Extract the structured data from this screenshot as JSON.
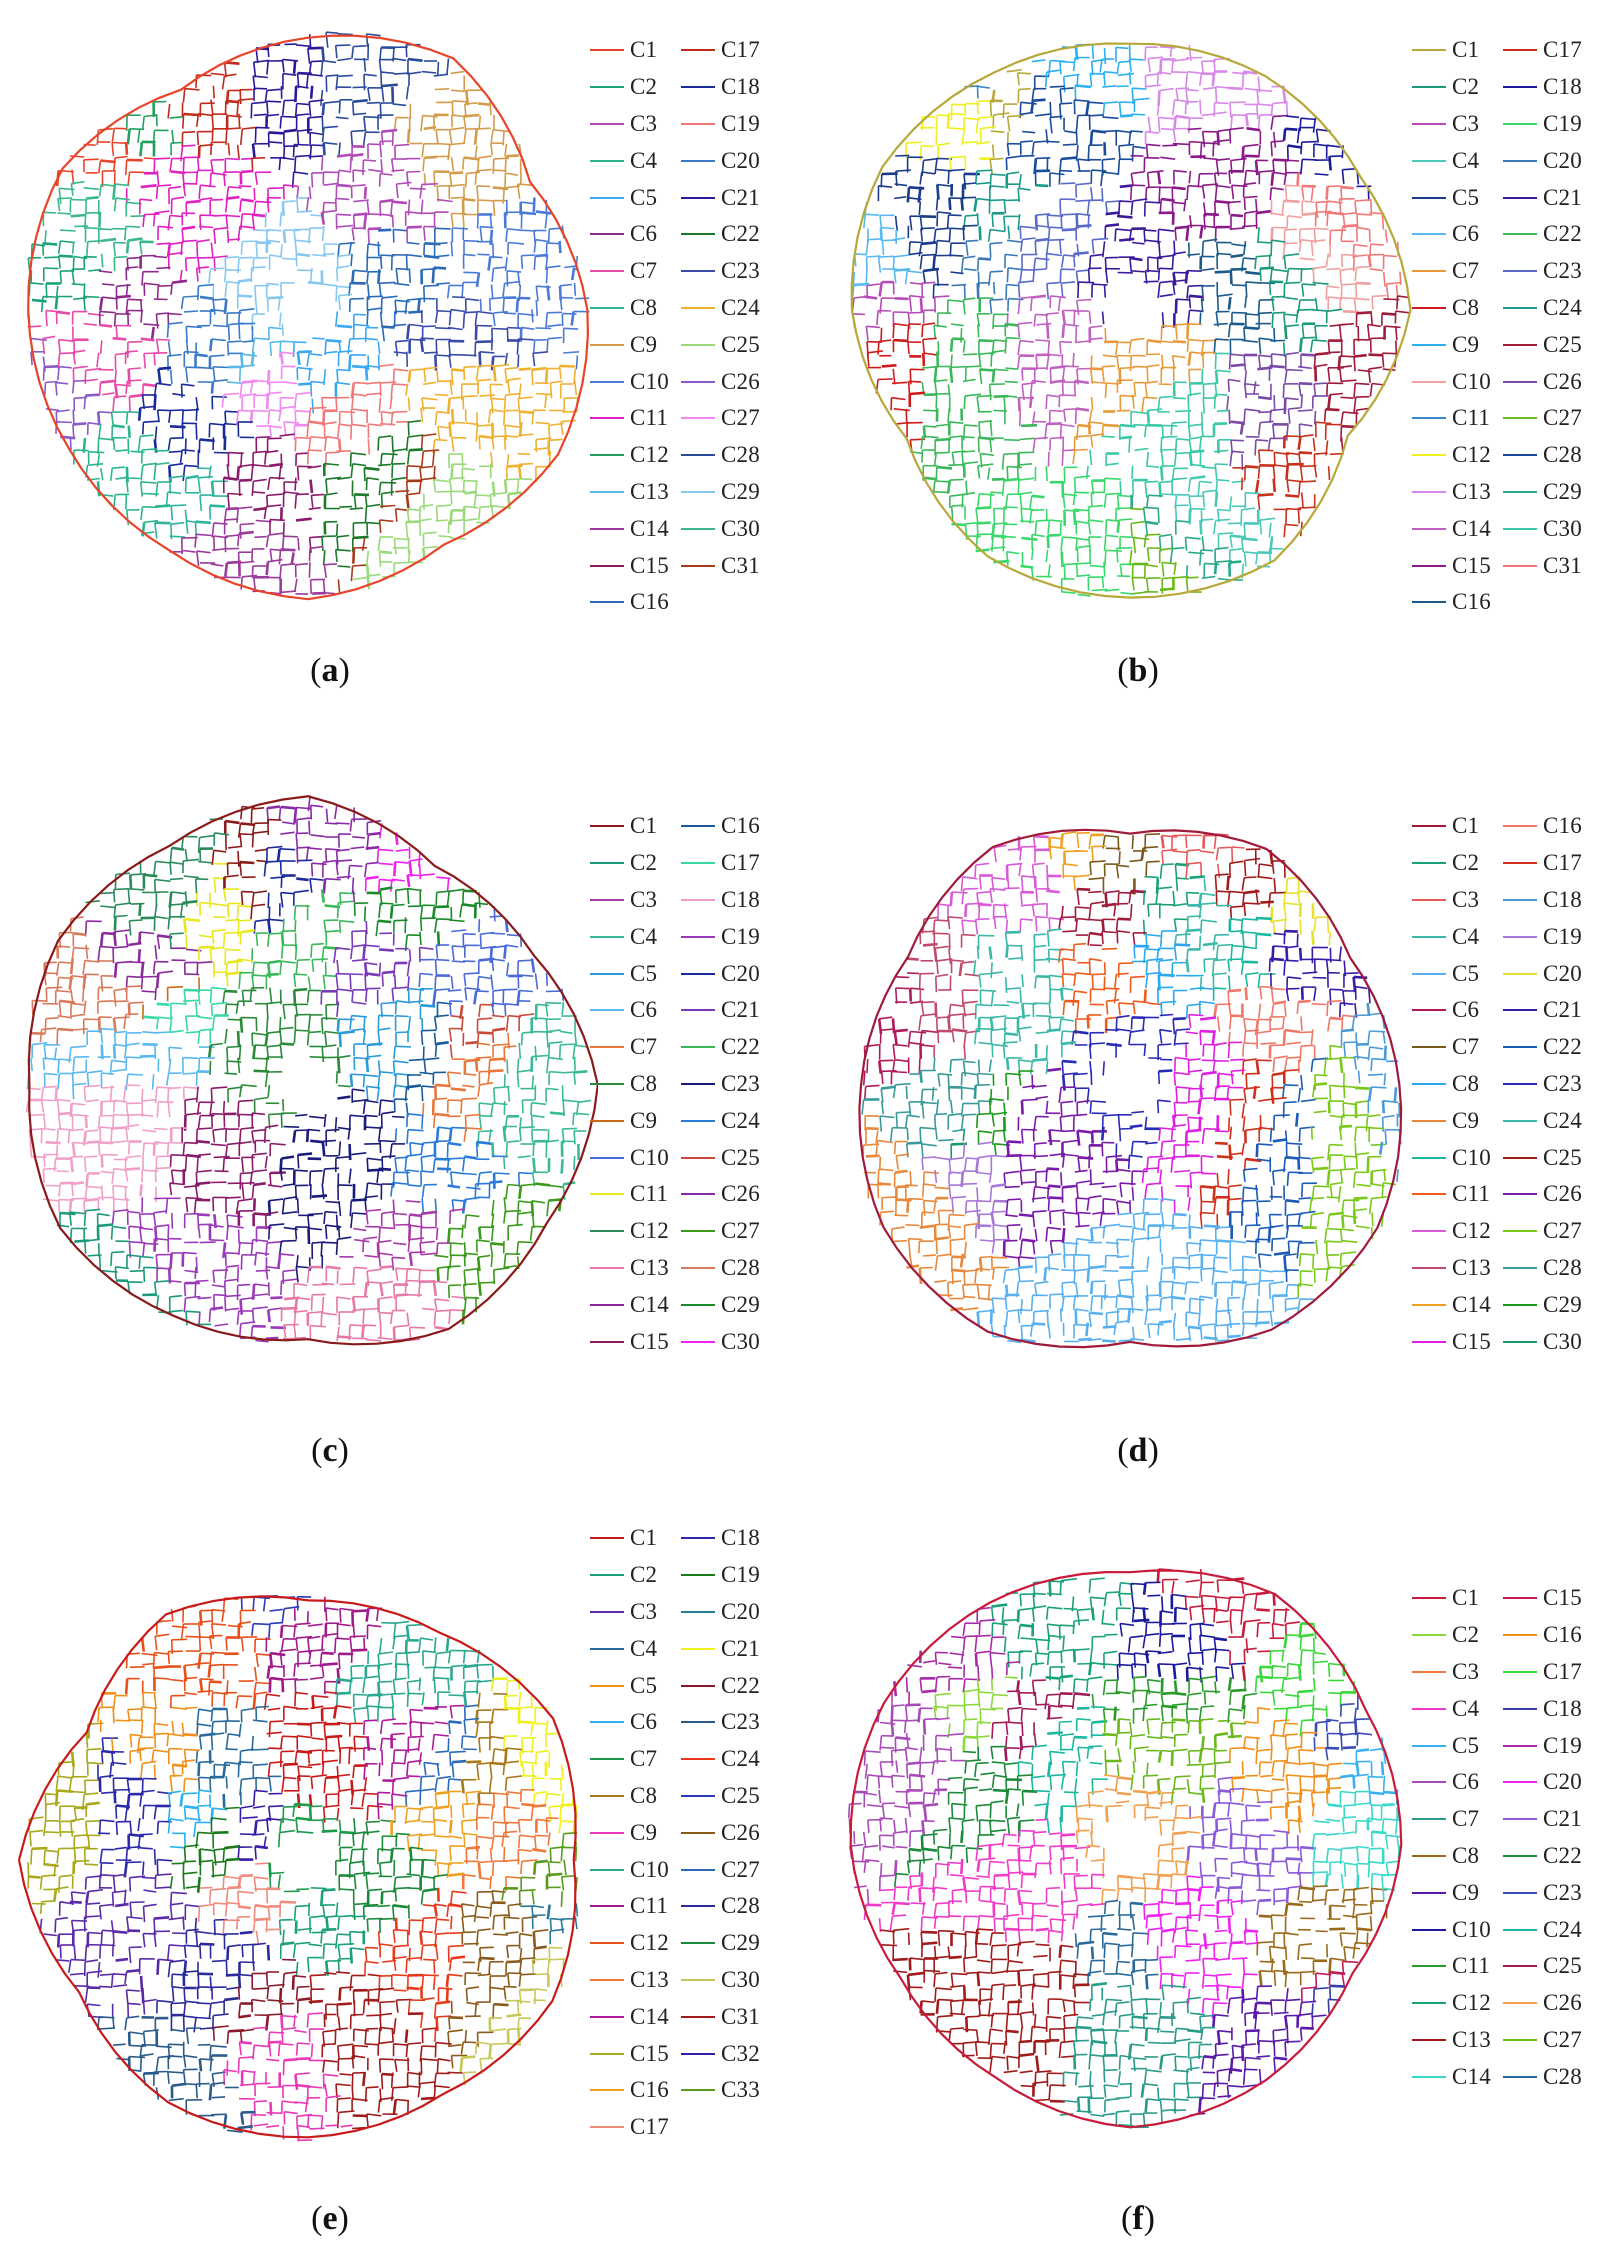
{
  "figure": {
    "panels": [
      {
        "id": "a",
        "label_open": "(",
        "letter": "a",
        "label_close": ")",
        "rows": 16,
        "legend": [
          {
            "name": "C1",
            "color": "#e8442a"
          },
          {
            "name": "C2",
            "color": "#1aa37a"
          },
          {
            "name": "C3",
            "color": "#b04ab8"
          },
          {
            "name": "C4",
            "color": "#2bb58f"
          },
          {
            "name": "C5",
            "color": "#3aa8f0"
          },
          {
            "name": "C6",
            "color": "#8c2a8c"
          },
          {
            "name": "C7",
            "color": "#e84aa8"
          },
          {
            "name": "C8",
            "color": "#2fb39e"
          },
          {
            "name": "C9",
            "color": "#d39b4a"
          },
          {
            "name": "C10",
            "color": "#4a7ad8"
          },
          {
            "name": "C11",
            "color": "#e020c0"
          },
          {
            "name": "C12",
            "color": "#22a060"
          },
          {
            "name": "C13",
            "color": "#58b8e8"
          },
          {
            "name": "C14",
            "color": "#9a3a9a"
          },
          {
            "name": "C15",
            "color": "#8a1a6a"
          },
          {
            "name": "C16",
            "color": "#2a6ab8"
          },
          {
            "name": "C17",
            "color": "#c02a1a"
          },
          {
            "name": "C18",
            "color": "#1a2a9a"
          },
          {
            "name": "C19",
            "color": "#f07878"
          },
          {
            "name": "C20",
            "color": "#3a7ac8"
          },
          {
            "name": "C21",
            "color": "#2a1a9a"
          },
          {
            "name": "C22",
            "color": "#1a7a2a"
          },
          {
            "name": "C23",
            "color": "#3a4aa8"
          },
          {
            "name": "C24",
            "color": "#f0b030"
          },
          {
            "name": "C25",
            "color": "#9ad87a"
          },
          {
            "name": "C26",
            "color": "#8a5ac8"
          },
          {
            "name": "C27",
            "color": "#f088f0"
          },
          {
            "name": "C28",
            "color": "#2a4a9a"
          },
          {
            "name": "C29",
            "color": "#88c8f0"
          },
          {
            "name": "C30",
            "color": "#3ab88a"
          },
          {
            "name": "C31",
            "color": "#a83a1a"
          }
        ]
      },
      {
        "id": "b",
        "label_open": "(",
        "letter": "b",
        "label_close": ")",
        "rows": 16,
        "legend": [
          {
            "name": "C1",
            "color": "#b8a83a"
          },
          {
            "name": "C2",
            "color": "#1a9a7a"
          },
          {
            "name": "C3",
            "color": "#b84ab8"
          },
          {
            "name": "C4",
            "color": "#4ac8b8"
          },
          {
            "name": "C5",
            "color": "#1a3a8a"
          },
          {
            "name": "C6",
            "color": "#58b8f0"
          },
          {
            "name": "C7",
            "color": "#e89a3a"
          },
          {
            "name": "C8",
            "color": "#d01a1a"
          },
          {
            "name": "C9",
            "color": "#2ab0f0"
          },
          {
            "name": "C10",
            "color": "#f0a0a0"
          },
          {
            "name": "C11",
            "color": "#3a88c8"
          },
          {
            "name": "C12",
            "color": "#f0f020"
          },
          {
            "name": "C13",
            "color": "#d888e8"
          },
          {
            "name": "C14",
            "color": "#c060c0"
          },
          {
            "name": "C15",
            "color": "#8a1a8a"
          },
          {
            "name": "C16",
            "color": "#1a5a8a"
          },
          {
            "name": "C17",
            "color": "#c8301a"
          },
          {
            "name": "C18",
            "color": "#1a1a9a"
          },
          {
            "name": "C19",
            "color": "#3ad86a"
          },
          {
            "name": "C20",
            "color": "#3a7ab8"
          },
          {
            "name": "C21",
            "color": "#3a1a9a"
          },
          {
            "name": "C22",
            "color": "#3ab85a"
          },
          {
            "name": "C23",
            "color": "#5a6ac8"
          },
          {
            "name": "C24",
            "color": "#1a9a8a"
          },
          {
            "name": "C25",
            "color": "#a01a3a"
          },
          {
            "name": "C26",
            "color": "#7a4aa8"
          },
          {
            "name": "C27",
            "color": "#6ab81a"
          },
          {
            "name": "C28",
            "color": "#1a4a9a"
          },
          {
            "name": "C29",
            "color": "#2aa88a"
          },
          {
            "name": "C30",
            "color": "#3ac8a8"
          },
          {
            "name": "C31",
            "color": "#f07878"
          }
        ]
      },
      {
        "id": "c",
        "label_open": "(",
        "letter": "c",
        "label_close": ")",
        "rows": 15,
        "legend": [
          {
            "name": "C1",
            "color": "#8a1a1a"
          },
          {
            "name": "C2",
            "color": "#1a9a7a"
          },
          {
            "name": "C3",
            "color": "#a83aa8"
          },
          {
            "name": "C4",
            "color": "#3ab898"
          },
          {
            "name": "C5",
            "color": "#2a9ad8"
          },
          {
            "name": "C6",
            "color": "#58b8f0"
          },
          {
            "name": "C7",
            "color": "#e8783a"
          },
          {
            "name": "C8",
            "color": "#2a8a3a"
          },
          {
            "name": "C9",
            "color": "#c86a1a"
          },
          {
            "name": "C10",
            "color": "#4a6ad8"
          },
          {
            "name": "C11",
            "color": "#e8e820"
          },
          {
            "name": "C12",
            "color": "#2a8a5a"
          },
          {
            "name": "C13",
            "color": "#e878a8"
          },
          {
            "name": "C14",
            "color": "#8a2a9a"
          },
          {
            "name": "C15",
            "color": "#8a1a6a"
          },
          {
            "name": "C16",
            "color": "#1a5a9a"
          },
          {
            "name": "C17",
            "color": "#3ad8a8"
          },
          {
            "name": "C18",
            "color": "#f0a0c8"
          },
          {
            "name": "C19",
            "color": "#9a3ab8"
          },
          {
            "name": "C20",
            "color": "#1a2a9a"
          },
          {
            "name": "C21",
            "color": "#7a3ab8"
          },
          {
            "name": "C22",
            "color": "#3ab85a"
          },
          {
            "name": "C23",
            "color": "#1a1a7a"
          },
          {
            "name": "C24",
            "color": "#2a7ad8"
          },
          {
            "name": "C25",
            "color": "#c84a3a"
          },
          {
            "name": "C26",
            "color": "#8a2aa8"
          },
          {
            "name": "C27",
            "color": "#3a9a1a"
          },
          {
            "name": "C28",
            "color": "#d87a5a"
          },
          {
            "name": "C29",
            "color": "#1a8a2a"
          },
          {
            "name": "C30",
            "color": "#f020f0"
          }
        ]
      },
      {
        "id": "d",
        "label_open": "(",
        "letter": "d",
        "label_close": ")",
        "rows": 15,
        "legend": [
          {
            "name": "C1",
            "color": "#a01a3a"
          },
          {
            "name": "C2",
            "color": "#1aa07a"
          },
          {
            "name": "C3",
            "color": "#e85a5a"
          },
          {
            "name": "C4",
            "color": "#3ab8a8"
          },
          {
            "name": "C5",
            "color": "#58b0f0"
          },
          {
            "name": "C6",
            "color": "#b01a5a"
          },
          {
            "name": "C7",
            "color": "#7a5a1a"
          },
          {
            "name": "C8",
            "color": "#2aa8f0"
          },
          {
            "name": "C9",
            "color": "#e8883a"
          },
          {
            "name": "C10",
            "color": "#1ab8a0"
          },
          {
            "name": "C11",
            "color": "#f05a1a"
          },
          {
            "name": "C12",
            "color": "#d85ad8"
          },
          {
            "name": "C13",
            "color": "#c04a6a"
          },
          {
            "name": "C14",
            "color": "#f0a020"
          },
          {
            "name": "C15",
            "color": "#e020e0"
          },
          {
            "name": "C16",
            "color": "#f07868"
          },
          {
            "name": "C17",
            "color": "#d0301a"
          },
          {
            "name": "C18",
            "color": "#4a9ad8"
          },
          {
            "name": "C19",
            "color": "#a878d8"
          },
          {
            "name": "C20",
            "color": "#e8e030"
          },
          {
            "name": "C21",
            "color": "#3a1aa8"
          },
          {
            "name": "C22",
            "color": "#1a5ab8"
          },
          {
            "name": "C23",
            "color": "#2a2ab8"
          },
          {
            "name": "C24",
            "color": "#3ab8a8"
          },
          {
            "name": "C25",
            "color": "#a01a1a"
          },
          {
            "name": "C26",
            "color": "#7a1aa8"
          },
          {
            "name": "C27",
            "color": "#7ac81a"
          },
          {
            "name": "C28",
            "color": "#3a9a9a"
          },
          {
            "name": "C29",
            "color": "#1a9a1a"
          },
          {
            "name": "C30",
            "color": "#1a9a6a"
          }
        ]
      },
      {
        "id": "e",
        "label_open": "(",
        "letter": "e",
        "label_close": ")",
        "rows": 17,
        "legend": [
          {
            "name": "C1",
            "color": "#c81a1a"
          },
          {
            "name": "C2",
            "color": "#1aa07a"
          },
          {
            "name": "C3",
            "color": "#5a2aa8"
          },
          {
            "name": "C4",
            "color": "#2a6a9a"
          },
          {
            "name": "C5",
            "color": "#f0901a"
          },
          {
            "name": "C6",
            "color": "#2ab0f0"
          },
          {
            "name": "C7",
            "color": "#1a9a4a"
          },
          {
            "name": "C8",
            "color": "#a8781a"
          },
          {
            "name": "C9",
            "color": "#e83ab8"
          },
          {
            "name": "C10",
            "color": "#2aa890"
          },
          {
            "name": "C11",
            "color": "#a01a8a"
          },
          {
            "name": "C12",
            "color": "#e8501a"
          },
          {
            "name": "C13",
            "color": "#f0783a"
          },
          {
            "name": "C14",
            "color": "#b01a9a"
          },
          {
            "name": "C15",
            "color": "#a8a81a"
          },
          {
            "name": "C16",
            "color": "#f0a020"
          },
          {
            "name": "C17",
            "color": "#f08a7a"
          },
          {
            "name": "C18",
            "color": "#2a2aa8"
          },
          {
            "name": "C19",
            "color": "#1a7a1a"
          },
          {
            "name": "C20",
            "color": "#2a7a9a"
          },
          {
            "name": "C21",
            "color": "#f0f01a"
          },
          {
            "name": "C22",
            "color": "#8a1a2a"
          },
          {
            "name": "C23",
            "color": "#2a5a8a"
          },
          {
            "name": "C24",
            "color": "#e83a1a"
          },
          {
            "name": "C25",
            "color": "#2a3ab8"
          },
          {
            "name": "C26",
            "color": "#8a5a1a"
          },
          {
            "name": "C27",
            "color": "#2a6ab8"
          },
          {
            "name": "C28",
            "color": "#2a2a9a"
          },
          {
            "name": "C29",
            "color": "#1a8a3a"
          },
          {
            "name": "C30",
            "color": "#c8c85a"
          },
          {
            "name": "C31",
            "color": "#a01a1a"
          },
          {
            "name": "C32",
            "color": "#3a1aa8"
          },
          {
            "name": "C33",
            "color": "#5a9a1a"
          }
        ]
      },
      {
        "id": "f",
        "label_open": "(",
        "letter": "f",
        "label_close": ")",
        "rows": 14,
        "legend": [
          {
            "name": "C1",
            "color": "#c81a3a"
          },
          {
            "name": "C2",
            "color": "#8ad83a"
          },
          {
            "name": "C3",
            "color": "#f0783a"
          },
          {
            "name": "C4",
            "color": "#f03ac8"
          },
          {
            "name": "C5",
            "color": "#3ab0f0"
          },
          {
            "name": "C6",
            "color": "#a84ab8"
          },
          {
            "name": "C7",
            "color": "#2a9a8a"
          },
          {
            "name": "C8",
            "color": "#9a6a1a"
          },
          {
            "name": "C9",
            "color": "#5a1aa8"
          },
          {
            "name": "C10",
            "color": "#1a1a9a"
          },
          {
            "name": "C11",
            "color": "#2a9a2a"
          },
          {
            "name": "C12",
            "color": "#1aa07a"
          },
          {
            "name": "C13",
            "color": "#a01a1a"
          },
          {
            "name": "C14",
            "color": "#3ad8c8"
          },
          {
            "name": "C15",
            "color": "#c01a5a"
          },
          {
            "name": "C16",
            "color": "#f0901a"
          },
          {
            "name": "C17",
            "color": "#3ad83a"
          },
          {
            "name": "C18",
            "color": "#3a3aa8"
          },
          {
            "name": "C19",
            "color": "#a82aa8"
          },
          {
            "name": "C20",
            "color": "#f020f0"
          },
          {
            "name": "C21",
            "color": "#8a5ad8"
          },
          {
            "name": "C22",
            "color": "#1a8a3a"
          },
          {
            "name": "C23",
            "color": "#3a4ab8"
          },
          {
            "name": "C24",
            "color": "#1ab8a0"
          },
          {
            "name": "C25",
            "color": "#a01a5a"
          },
          {
            "name": "C26",
            "color": "#f0a050"
          },
          {
            "name": "C27",
            "color": "#6ab81a"
          },
          {
            "name": "C28",
            "color": "#2a6a9a"
          }
        ]
      }
    ]
  }
}
